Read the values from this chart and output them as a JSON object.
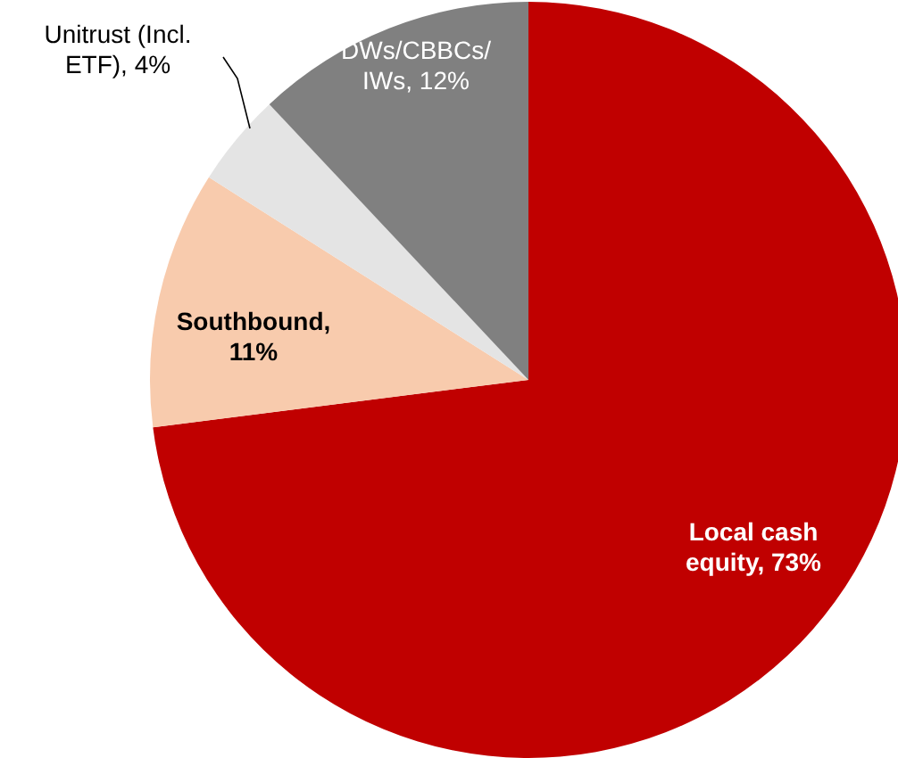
{
  "chart_data": {
    "type": "pie",
    "categories": [
      "Local cash equity, 73%",
      "Southbound, 11%",
      "Unitrust (Incl. ETF), 4%",
      "DWs/CBBCs/IWs, 12%"
    ],
    "values": [
      73,
      11,
      4,
      12
    ],
    "colors": [
      "#c00000",
      "#f8cbad",
      "#e4e4e4",
      "#808080"
    ],
    "legend": false
  }
}
